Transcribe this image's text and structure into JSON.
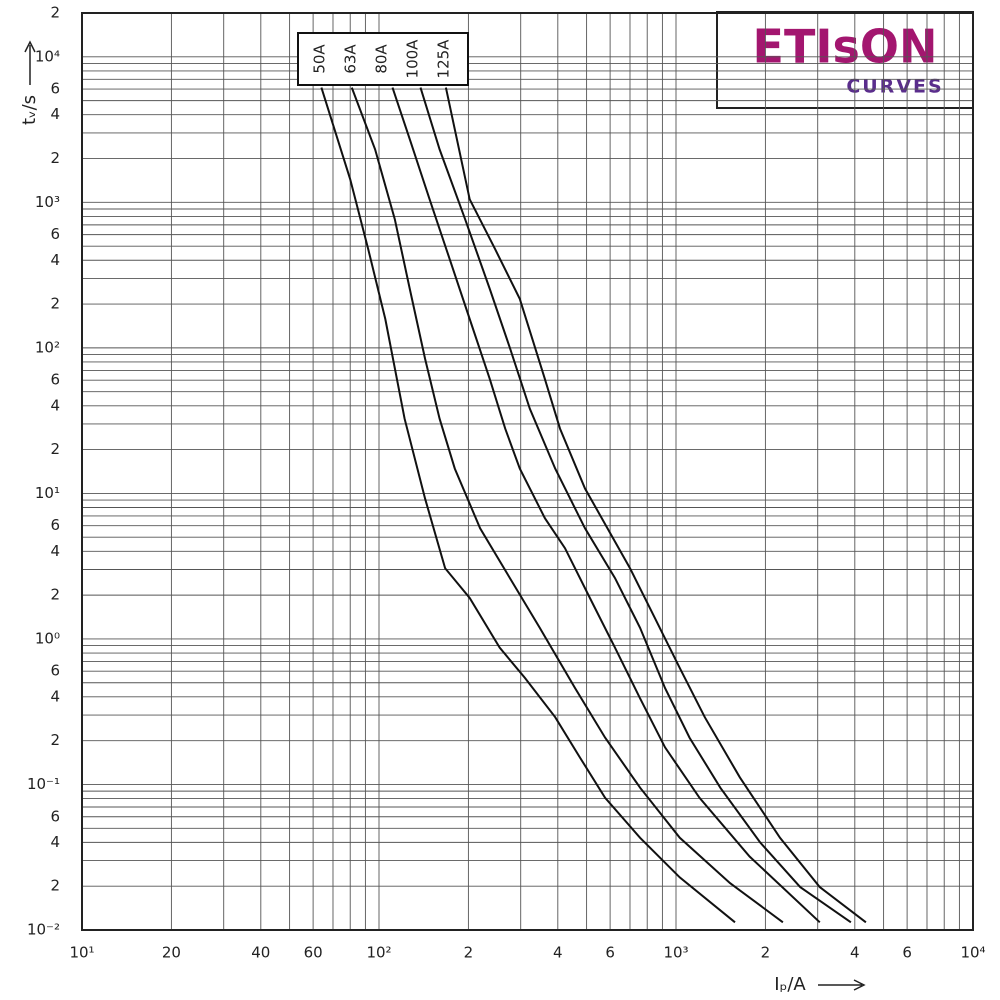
{
  "chart_data": {
    "type": "line",
    "log_x": true,
    "log_y": true,
    "grid": true,
    "logo": "ETIsON",
    "logo_subtitle": "CURVES",
    "xlabel": "Iₚ/A",
    "ylabel": "tᵥ/s",
    "xlim": [
      10,
      10000
    ],
    "ylim": [
      0.01,
      20000
    ],
    "xticks": [
      {
        "value": 10,
        "label": "10¹"
      },
      20,
      40,
      60,
      {
        "value": 100,
        "label": "10²"
      },
      {
        "value": 200,
        "label": "2"
      },
      {
        "value": 400,
        "label": "4"
      },
      {
        "value": 600,
        "label": "6"
      },
      {
        "value": 1000,
        "label": "10³"
      },
      {
        "value": 2000,
        "label": "2"
      },
      {
        "value": 4000,
        "label": "4"
      },
      {
        "value": 6000,
        "label": "6"
      },
      {
        "value": 10000,
        "label": "10⁴"
      }
    ],
    "yticks": [
      {
        "value": 0.01,
        "label": "10⁻²"
      },
      {
        "value": 0.02,
        "label": "2"
      },
      {
        "value": 0.04,
        "label": "4"
      },
      {
        "value": 0.06,
        "label": "6"
      },
      {
        "value": 0.1,
        "label": "10⁻¹"
      },
      {
        "value": 0.2,
        "label": "2"
      },
      {
        "value": 0.4,
        "label": "4"
      },
      {
        "value": 0.6,
        "label": "6"
      },
      {
        "value": 1,
        "label": "10⁰"
      },
      2,
      4,
      6,
      {
        "value": 10,
        "label": "10¹"
      },
      {
        "value": 20,
        "label": "2"
      },
      {
        "value": 40,
        "label": "4"
      },
      {
        "value": 60,
        "label": "6"
      },
      {
        "value": 100,
        "label": "10²"
      },
      {
        "value": 200,
        "label": "2"
      },
      {
        "value": 400,
        "label": "4"
      },
      {
        "value": 600,
        "label": "6"
      },
      {
        "value": 1000,
        "label": "10³"
      },
      {
        "value": 2000,
        "label": "2"
      },
      {
        "value": 4000,
        "label": "4"
      },
      {
        "value": 6000,
        "label": "6"
      },
      {
        "value": 10000,
        "label": "10⁴"
      },
      {
        "value": 20000,
        "label": "2"
      }
    ],
    "xgrid": [
      10,
      20,
      30,
      40,
      50,
      60,
      70,
      80,
      90,
      100,
      200,
      300,
      400,
      500,
      600,
      700,
      800,
      900,
      1000,
      2000,
      3000,
      4000,
      5000,
      6000,
      7000,
      8000,
      9000,
      10000
    ],
    "ygrid": [
      0.01,
      0.02,
      0.03,
      0.04,
      0.05,
      0.06,
      0.07,
      0.08,
      0.09,
      0.1,
      0.2,
      0.3,
      0.4,
      0.5,
      0.6,
      0.7,
      0.8,
      0.9,
      1,
      2,
      3,
      4,
      5,
      6,
      7,
      8,
      9,
      10,
      20,
      30,
      40,
      50,
      60,
      70,
      80,
      90,
      100,
      200,
      300,
      400,
      500,
      600,
      700,
      800,
      900,
      1000,
      2000,
      3000,
      4000,
      5000,
      6000,
      7000,
      8000,
      9000,
      10000,
      20000
    ],
    "color": "#111111",
    "series": [
      {
        "name": "50A",
        "x": [
          64,
          80,
          92,
          105,
          122,
          143,
          167,
          202,
          255,
          310,
          392,
          475,
          577,
          757,
          1030,
          1580
        ],
        "values": [
          6140,
          1440,
          477,
          158,
          32.6,
          9.2,
          3.06,
          1.91,
          0.87,
          0.54,
          0.29,
          0.153,
          0.081,
          0.043,
          0.023,
          0.0113
        ]
      },
      {
        "name": "63A",
        "x": [
          81,
          97,
          113,
          127,
          143,
          160,
          180,
          219,
          276,
          348,
          457,
          577,
          757,
          1030,
          1520,
          2290
        ],
        "values": [
          6140,
          2310,
          766,
          254,
          84,
          32.6,
          14.8,
          5.76,
          2.62,
          1.19,
          0.46,
          0.21,
          0.095,
          0.043,
          0.021,
          0.0113
        ]
      },
      {
        "name": "80A",
        "x": [
          111,
          127,
          148,
          173,
          202,
          236,
          266,
          298,
          362,
          423,
          513,
          623,
          757,
          918,
          1200,
          1770,
          3050
        ],
        "values": [
          6140,
          2710,
          1050,
          407,
          158,
          61,
          27.9,
          14.8,
          6.75,
          4.2,
          1.91,
          0.87,
          0.39,
          0.18,
          0.081,
          0.032,
          0.0113
        ]
      },
      {
        "name": "100A",
        "x": [
          138,
          160,
          195,
          236,
          276,
          322,
          392,
          494,
          623,
          757,
          918,
          1110,
          1410,
          1920,
          2620,
          3880
        ],
        "values": [
          6140,
          2310,
          766,
          254,
          100,
          38.2,
          14.8,
          5.76,
          2.62,
          1.19,
          0.46,
          0.21,
          0.095,
          0.04,
          0.0197,
          0.0113
        ]
      },
      {
        "name": "125A",
        "x": [
          168,
          202,
          246,
          298,
          362,
          407,
          494,
          700,
          849,
          1030,
          1250,
          1640,
          2240,
          3050,
          4360
        ],
        "values": [
          6140,
          1050,
          477,
          217,
          61,
          27.9,
          10.8,
          3.06,
          1.39,
          0.63,
          0.29,
          0.112,
          0.043,
          0.0197,
          0.0113
        ]
      }
    ]
  }
}
